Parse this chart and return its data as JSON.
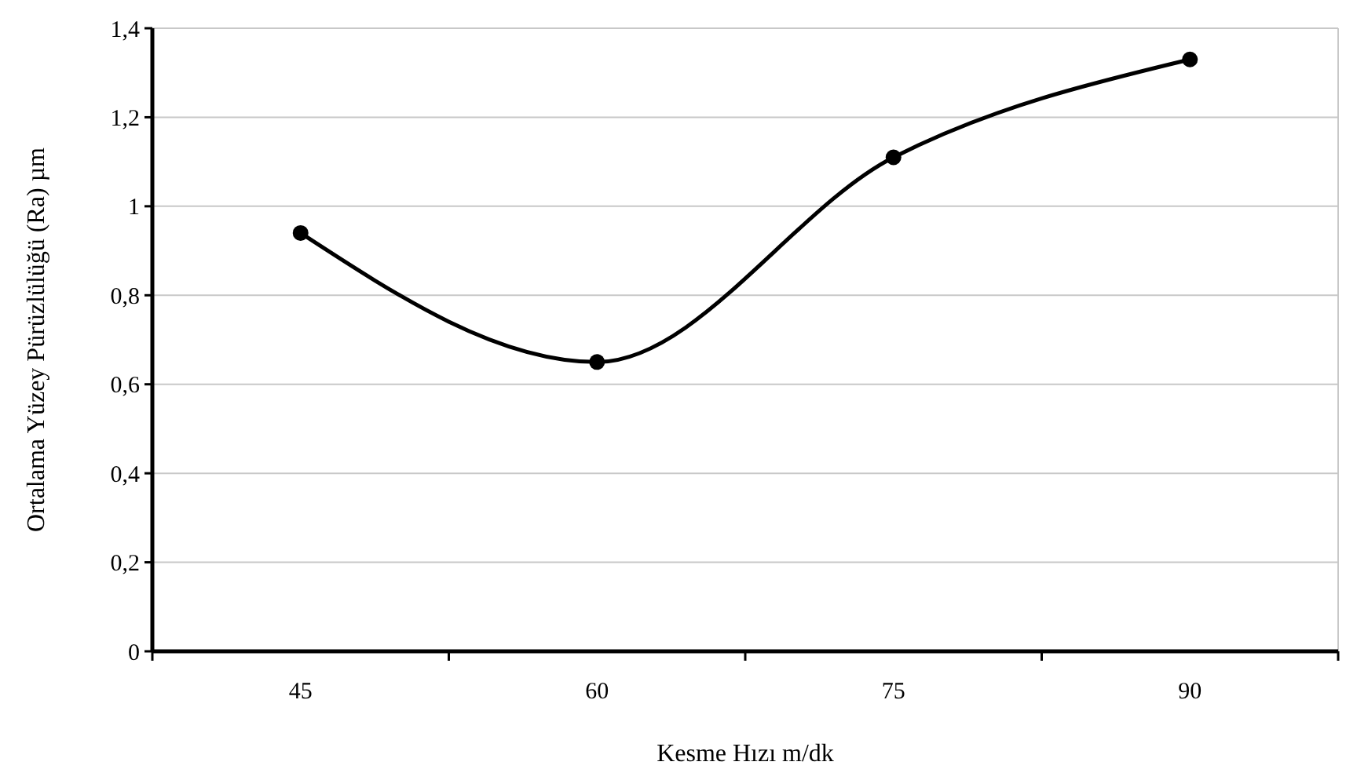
{
  "chart_data": {
    "type": "line",
    "xlabel": "Kesme Hızı m/dk",
    "ylabel": "Ortalama Yüzey Pürüzlülüğü (Ra) µm",
    "categories": [
      "45",
      "60",
      "75",
      "90"
    ],
    "series": [
      {
        "color": "#000000",
        "values": [
          0.94,
          0.65,
          1.11,
          1.33
        ]
      }
    ],
    "ylim": [
      0,
      1.4
    ],
    "yticks": [
      0,
      {
        "value": 0.2,
        "label": "0,2"
      },
      {
        "value": 0.4,
        "label": "0,4"
      },
      {
        "value": 0.6,
        "label": "0,6"
      },
      {
        "value": 0.8,
        "label": "0,8"
      },
      1,
      {
        "value": 1.2,
        "label": "1,2"
      },
      {
        "value": 1.4,
        "label": "1,4"
      }
    ],
    "grid": "y",
    "marker": "circle",
    "line_style": "solid"
  }
}
